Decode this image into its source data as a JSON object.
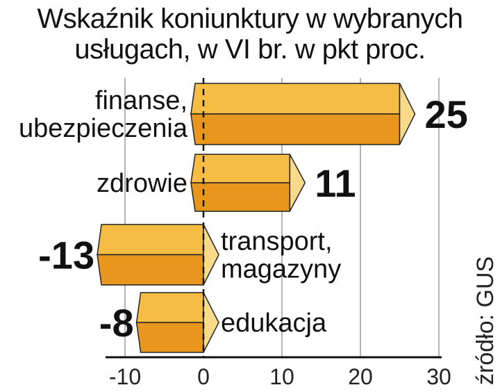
{
  "chart_data": {
    "type": "bar",
    "orientation": "horizontal",
    "title": "Wskaźnik koniunktury w wybranych",
    "subtitle": "usługach, w VI br. w pkt proc.",
    "categories": [
      [
        "finanse,",
        "ubezpieczenia"
      ],
      [
        "zdrowie"
      ],
      [
        "transport,",
        "magazyny"
      ],
      [
        "edukacja"
      ]
    ],
    "values": [
      25,
      11,
      -13,
      -8
    ],
    "value_labels": [
      "25",
      "11",
      "-13",
      "-8"
    ],
    "xlim": [
      -10,
      30
    ],
    "xticks": [
      -10,
      0,
      10,
      20,
      30
    ],
    "xtick_labels": [
      "-10",
      "0",
      "10",
      "20",
      "30"
    ],
    "grid": "vertical",
    "source": "źródło: GUS",
    "colors": {
      "top": "#F6BD45",
      "bottom": "#E8961E",
      "tip": "#F9D98A",
      "grid": "#9a9a9a"
    }
  }
}
